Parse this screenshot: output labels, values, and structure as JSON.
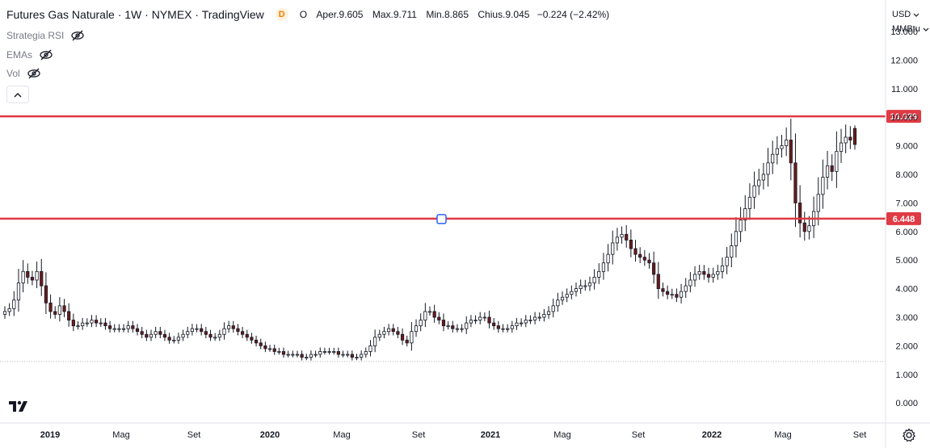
{
  "header": {
    "title": "Futures Gas Naturale · 1W · NYMEX · TradingView",
    "badge": "D",
    "ohlc": {
      "o_label": "O",
      "open_label": "Aper.",
      "open": "9.605",
      "high_label": "Max.",
      "high": "9.711",
      "low_label": "Min.",
      "low": "8.865",
      "close_label": "Chius.",
      "close": "9.045",
      "change": "−0.224 (−2.42%)"
    }
  },
  "legend": {
    "items": [
      {
        "label": "Strategia RSI",
        "icon": "eye-crossed-icon"
      },
      {
        "label": "EMAs",
        "icon": "eye-crossed-icon"
      },
      {
        "label": "Vol",
        "icon": "eye-crossed-icon"
      }
    ]
  },
  "price_axis": {
    "currency": "USD",
    "unit": "MMBtu"
  },
  "colors": {
    "up": "#26a69a",
    "down": "#ef5350",
    "candle_up_body": "#ffffff",
    "candle_down_body": "#6d1b1b",
    "hline": "#e03a44",
    "grid_dots": "#b2b5be"
  },
  "chart_data": {
    "type": "candlestick",
    "title": "Futures Gas Naturale · 1W · NYMEX · TradingView",
    "ylim": [
      -0.7,
      14.1
    ],
    "y_ticks": [
      "0.000",
      "1.000",
      "2.000",
      "3.000",
      "4.000",
      "5.000",
      "6.000",
      "7.000",
      "8.000",
      "9.000",
      "10.000",
      "11.000",
      "12.000",
      "13.000"
    ],
    "x_ticks": [
      "2019",
      "Mag",
      "Set",
      "2020",
      "Mag",
      "Set",
      "2021",
      "Mag",
      "Set",
      "2022",
      "Mag",
      "Set"
    ],
    "horizontal_lines": [
      {
        "value": 10.029,
        "label": "10.029"
      },
      {
        "value": 6.448,
        "label": "6.448"
      }
    ],
    "reference_line": {
      "value": 1.45
    },
    "series_close": [
      3.2,
      3.3,
      3.6,
      4.2,
      4.6,
      4.4,
      4.3,
      4.6,
      4.1,
      3.5,
      3.2,
      3.1,
      3.4,
      3.2,
      2.9,
      2.7,
      2.7,
      2.8,
      2.8,
      2.9,
      2.8,
      2.8,
      2.7,
      2.6,
      2.6,
      2.6,
      2.6,
      2.7,
      2.6,
      2.5,
      2.4,
      2.3,
      2.4,
      2.5,
      2.4,
      2.3,
      2.2,
      2.2,
      2.3,
      2.4,
      2.5,
      2.6,
      2.6,
      2.5,
      2.4,
      2.3,
      2.3,
      2.4,
      2.6,
      2.7,
      2.6,
      2.5,
      2.4,
      2.3,
      2.2,
      2.1,
      2.0,
      1.9,
      1.9,
      1.8,
      1.8,
      1.7,
      1.7,
      1.7,
      1.7,
      1.6,
      1.6,
      1.7,
      1.7,
      1.8,
      1.8,
      1.8,
      1.8,
      1.7,
      1.7,
      1.7,
      1.6,
      1.6,
      1.7,
      1.8,
      2.0,
      2.3,
      2.4,
      2.5,
      2.6,
      2.5,
      2.4,
      2.2,
      2.1,
      2.5,
      2.7,
      2.9,
      3.2,
      3.2,
      3.0,
      2.9,
      2.7,
      2.7,
      2.6,
      2.6,
      2.6,
      2.8,
      2.9,
      2.9,
      3.0,
      3.0,
      2.8,
      2.7,
      2.6,
      2.6,
      2.6,
      2.7,
      2.8,
      2.8,
      2.9,
      2.9,
      3.0,
      3.0,
      3.1,
      3.2,
      3.4,
      3.6,
      3.7,
      3.8,
      3.9,
      4.0,
      4.1,
      4.1,
      4.2,
      4.4,
      4.6,
      4.9,
      5.2,
      5.6,
      5.8,
      5.9,
      5.7,
      5.4,
      5.2,
      5.1,
      5.0,
      4.9,
      4.5,
      4.0,
      3.9,
      3.8,
      3.8,
      3.7,
      3.9,
      4.1,
      4.3,
      4.5,
      4.6,
      4.5,
      4.4,
      4.5,
      4.6,
      4.8,
      5.1,
      5.5,
      6.0,
      6.4,
      6.8,
      7.2,
      7.6,
      7.8,
      8.0,
      8.4,
      8.7,
      8.9,
      9.0,
      9.2,
      8.4,
      7.0,
      6.3,
      6.0,
      6.2,
      6.7,
      7.3,
      7.9,
      8.3,
      8.1,
      8.8,
      9.1,
      9.3,
      9.2,
      9.045
    ],
    "last": {
      "open": 9.605,
      "high": 9.711,
      "low": 8.865,
      "close": 9.045,
      "change": -0.224,
      "change_pct": -2.42
    }
  }
}
